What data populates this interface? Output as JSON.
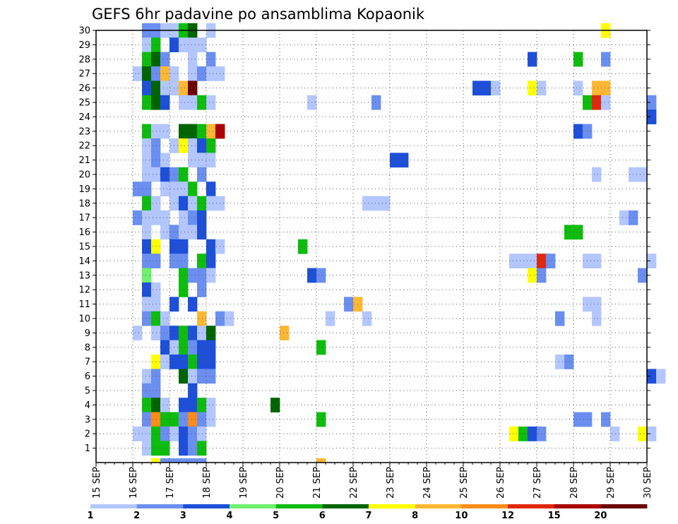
{
  "chart_data": {
    "type": "heatmap",
    "title": "GEFS 6hr padavine po ansamblima Kopaonik",
    "x_ticks": [
      "15 SEP",
      "16 SEP",
      "17 SEP",
      "18 SEP",
      "19 SEP",
      "20 SEP",
      "21 SEP",
      "22 SEP",
      "23 SEP",
      "24 SEP",
      "25 SEP",
      "26 SEP",
      "27 SEP",
      "28 SEP",
      "29 SEP",
      "30 SEP"
    ],
    "y_ticks": [
      "1",
      "2",
      "3",
      "4",
      "5",
      "6",
      "7",
      "8",
      "9",
      "10",
      "11",
      "12",
      "13",
      "14",
      "15",
      "16",
      "17",
      "18",
      "19",
      "20",
      "21",
      "22",
      "23",
      "24",
      "25",
      "26",
      "27",
      "28",
      "29",
      "30"
    ],
    "legend_labels": [
      "1",
      "2",
      "3",
      "4",
      "5",
      "6",
      "7",
      "8",
      "10",
      "12",
      "15",
      "20"
    ],
    "colors": [
      "#b3c6ff",
      "#6b8ff0",
      "#1e4fd8",
      "#6ff06f",
      "#0dbc0d",
      "#006400",
      "#ffff00",
      "#ffb733",
      "#ff8c19",
      "#e0280c",
      "#aa0000",
      "#6b0000"
    ],
    "x_grid_step_days": 0.25,
    "grid": "dotted",
    "legend_position": "bottom",
    "note_values": "level index per 6h step: 1=[1,2) 2=[2,3) 3=[3,4) 4=[4,5) 5=[5,6) 6=[6,7) 7=[7,8) 8=[8,10) 9=[10,12) 10=[12,15) 11=[15,20) 12=[20,+)",
    "cells": [
      [
        30,
        5,
        2
      ],
      [
        30,
        6,
        2
      ],
      [
        30,
        7,
        1
      ],
      [
        30,
        8,
        1
      ],
      [
        30,
        9,
        5
      ],
      [
        30,
        10,
        6
      ],
      [
        30,
        12,
        1
      ],
      [
        30,
        55,
        7
      ],
      [
        29,
        5,
        1
      ],
      [
        29,
        6,
        5
      ],
      [
        29,
        8,
        3
      ],
      [
        29,
        9,
        1
      ],
      [
        29,
        10,
        1
      ],
      [
        29,
        11,
        1
      ],
      [
        28,
        5,
        5
      ],
      [
        28,
        6,
        6
      ],
      [
        28,
        7,
        2
      ],
      [
        28,
        10,
        1
      ],
      [
        28,
        12,
        2
      ],
      [
        28,
        47,
        3
      ],
      [
        28,
        52,
        5
      ],
      [
        28,
        55,
        2
      ],
      [
        27,
        4,
        1
      ],
      [
        27,
        5,
        6
      ],
      [
        27,
        6,
        2
      ],
      [
        27,
        7,
        8
      ],
      [
        27,
        8,
        1
      ],
      [
        27,
        10,
        1
      ],
      [
        27,
        11,
        2
      ],
      [
        27,
        12,
        1
      ],
      [
        27,
        13,
        1
      ],
      [
        26,
        5,
        3
      ],
      [
        26,
        6,
        6
      ],
      [
        26,
        7,
        1
      ],
      [
        26,
        8,
        1
      ],
      [
        26,
        9,
        8
      ],
      [
        26,
        10,
        12
      ],
      [
        26,
        41,
        3
      ],
      [
        26,
        42,
        3
      ],
      [
        26,
        43,
        1
      ],
      [
        26,
        47,
        7
      ],
      [
        26,
        48,
        1
      ],
      [
        26,
        52,
        1
      ],
      [
        26,
        54,
        8
      ],
      [
        26,
        55,
        8
      ],
      [
        25,
        5,
        5
      ],
      [
        25,
        6,
        6
      ],
      [
        25,
        7,
        3
      ],
      [
        25,
        9,
        1
      ],
      [
        25,
        10,
        1
      ],
      [
        25,
        11,
        5
      ],
      [
        25,
        12,
        1
      ],
      [
        25,
        23,
        1
      ],
      [
        25,
        30,
        2
      ],
      [
        25,
        53,
        5
      ],
      [
        25,
        54,
        10
      ],
      [
        25,
        55,
        1
      ],
      [
        25,
        60,
        2
      ],
      [
        24,
        60,
        3
      ],
      [
        23,
        5,
        5
      ],
      [
        23,
        6,
        1
      ],
      [
        23,
        7,
        1
      ],
      [
        23,
        9,
        6
      ],
      [
        23,
        10,
        6
      ],
      [
        23,
        11,
        5
      ],
      [
        23,
        12,
        8
      ],
      [
        23,
        13,
        11
      ],
      [
        23,
        52,
        3
      ],
      [
        23,
        53,
        2
      ],
      [
        22,
        5,
        1
      ],
      [
        22,
        6,
        2
      ],
      [
        22,
        8,
        1
      ],
      [
        22,
        9,
        7
      ],
      [
        22,
        10,
        1
      ],
      [
        22,
        11,
        3
      ],
      [
        22,
        12,
        5
      ],
      [
        21,
        5,
        1
      ],
      [
        21,
        6,
        2
      ],
      [
        21,
        7,
        1
      ],
      [
        21,
        10,
        1
      ],
      [
        21,
        11,
        1
      ],
      [
        21,
        12,
        1
      ],
      [
        21,
        32,
        3
      ],
      [
        21,
        33,
        3
      ],
      [
        20,
        5,
        1
      ],
      [
        20,
        6,
        1
      ],
      [
        20,
        7,
        3
      ],
      [
        20,
        8,
        2
      ],
      [
        20,
        9,
        5
      ],
      [
        20,
        11,
        2
      ],
      [
        20,
        54,
        1
      ],
      [
        20,
        58,
        1
      ],
      [
        20,
        59,
        1
      ],
      [
        19,
        4,
        2
      ],
      [
        19,
        5,
        2
      ],
      [
        19,
        7,
        1
      ],
      [
        19,
        8,
        1
      ],
      [
        19,
        9,
        1
      ],
      [
        19,
        10,
        5
      ],
      [
        19,
        12,
        3
      ],
      [
        18,
        5,
        5
      ],
      [
        18,
        6,
        1
      ],
      [
        18,
        8,
        1
      ],
      [
        18,
        9,
        3
      ],
      [
        18,
        10,
        1
      ],
      [
        18,
        11,
        5
      ],
      [
        18,
        12,
        1
      ],
      [
        18,
        13,
        1
      ],
      [
        18,
        29,
        1
      ],
      [
        18,
        30,
        1
      ],
      [
        18,
        31,
        1
      ],
      [
        17,
        4,
        2
      ],
      [
        17,
        5,
        1
      ],
      [
        17,
        6,
        1
      ],
      [
        17,
        7,
        1
      ],
      [
        17,
        9,
        1
      ],
      [
        17,
        10,
        2
      ],
      [
        17,
        11,
        3
      ],
      [
        17,
        57,
        1
      ],
      [
        17,
        58,
        2
      ],
      [
        16,
        5,
        1
      ],
      [
        16,
        7,
        1
      ],
      [
        16,
        8,
        2
      ],
      [
        16,
        9,
        1
      ],
      [
        16,
        10,
        1
      ],
      [
        16,
        11,
        3
      ],
      [
        16,
        51,
        5
      ],
      [
        16,
        52,
        5
      ],
      [
        15,
        5,
        3
      ],
      [
        15,
        6,
        7
      ],
      [
        15,
        8,
        3
      ],
      [
        15,
        9,
        3
      ],
      [
        15,
        12,
        3
      ],
      [
        15,
        13,
        1
      ],
      [
        15,
        22,
        5
      ],
      [
        14,
        5,
        2
      ],
      [
        14,
        6,
        2
      ],
      [
        14,
        8,
        2
      ],
      [
        14,
        9,
        2
      ],
      [
        14,
        11,
        5
      ],
      [
        14,
        12,
        3
      ],
      [
        14,
        45,
        1
      ],
      [
        14,
        46,
        1
      ],
      [
        14,
        47,
        1
      ],
      [
        14,
        48,
        10
      ],
      [
        14,
        49,
        2
      ],
      [
        14,
        53,
        1
      ],
      [
        14,
        54,
        1
      ],
      [
        14,
        60,
        1
      ],
      [
        13,
        5,
        4
      ],
      [
        13,
        9,
        5
      ],
      [
        13,
        10,
        2
      ],
      [
        13,
        11,
        2
      ],
      [
        13,
        12,
        1
      ],
      [
        13,
        23,
        3
      ],
      [
        13,
        24,
        2
      ],
      [
        13,
        47,
        7
      ],
      [
        13,
        48,
        2
      ],
      [
        13,
        59,
        2
      ],
      [
        12,
        5,
        3
      ],
      [
        12,
        6,
        1
      ],
      [
        12,
        9,
        5
      ],
      [
        12,
        11,
        2
      ],
      [
        11,
        5,
        1
      ],
      [
        11,
        6,
        1
      ],
      [
        11,
        8,
        3
      ],
      [
        11,
        10,
        3
      ],
      [
        11,
        27,
        2
      ],
      [
        11,
        28,
        8
      ],
      [
        11,
        53,
        1
      ],
      [
        11,
        54,
        1
      ],
      [
        10,
        5,
        2
      ],
      [
        10,
        6,
        5
      ],
      [
        10,
        7,
        1
      ],
      [
        10,
        11,
        8
      ],
      [
        10,
        13,
        2
      ],
      [
        10,
        14,
        1
      ],
      [
        10,
        25,
        1
      ],
      [
        10,
        29,
        1
      ],
      [
        10,
        50,
        2
      ],
      [
        10,
        54,
        1
      ],
      [
        9,
        4,
        1
      ],
      [
        9,
        6,
        1
      ],
      [
        9,
        7,
        2
      ],
      [
        9,
        8,
        3
      ],
      [
        9,
        9,
        5
      ],
      [
        9,
        10,
        3
      ],
      [
        9,
        11,
        1
      ],
      [
        9,
        12,
        6
      ],
      [
        9,
        20,
        8
      ],
      [
        8,
        7,
        3
      ],
      [
        8,
        8,
        1
      ],
      [
        8,
        9,
        5
      ],
      [
        8,
        10,
        2
      ],
      [
        8,
        11,
        3
      ],
      [
        8,
        12,
        3
      ],
      [
        8,
        24,
        5
      ],
      [
        7,
        6,
        7
      ],
      [
        7,
        7,
        1
      ],
      [
        7,
        8,
        3
      ],
      [
        7,
        9,
        3
      ],
      [
        7,
        10,
        5
      ],
      [
        7,
        11,
        3
      ],
      [
        7,
        12,
        3
      ],
      [
        7,
        50,
        1
      ],
      [
        7,
        51,
        2
      ],
      [
        6,
        5,
        1
      ],
      [
        6,
        6,
        2
      ],
      [
        6,
        9,
        6
      ],
      [
        6,
        10,
        1
      ],
      [
        6,
        11,
        2
      ],
      [
        6,
        12,
        2
      ],
      [
        6,
        60,
        3
      ],
      [
        6,
        61,
        1
      ],
      [
        5,
        5,
        2
      ],
      [
        5,
        6,
        2
      ],
      [
        5,
        10,
        3
      ],
      [
        4,
        5,
        5
      ],
      [
        4,
        6,
        6
      ],
      [
        4,
        7,
        1
      ],
      [
        4,
        9,
        3
      ],
      [
        4,
        10,
        3
      ],
      [
        4,
        11,
        5
      ],
      [
        4,
        12,
        1
      ],
      [
        4,
        19,
        6
      ],
      [
        3,
        5,
        2
      ],
      [
        3,
        6,
        9
      ],
      [
        3,
        7,
        5
      ],
      [
        3,
        8,
        5
      ],
      [
        3,
        9,
        2
      ],
      [
        3,
        10,
        9
      ],
      [
        3,
        11,
        2
      ],
      [
        3,
        12,
        1
      ],
      [
        3,
        24,
        5
      ],
      [
        3,
        52,
        2
      ],
      [
        3,
        53,
        2
      ],
      [
        3,
        55,
        2
      ],
      [
        2,
        4,
        1
      ],
      [
        2,
        5,
        1
      ],
      [
        2,
        6,
        5
      ],
      [
        2,
        7,
        2
      ],
      [
        2,
        8,
        1
      ],
      [
        2,
        9,
        3
      ],
      [
        2,
        10,
        2
      ],
      [
        2,
        11,
        1
      ],
      [
        2,
        45,
        7
      ],
      [
        2,
        46,
        5
      ],
      [
        2,
        47,
        3
      ],
      [
        2,
        48,
        2
      ],
      [
        2,
        56,
        1
      ],
      [
        2,
        59,
        7
      ],
      [
        2,
        60,
        1
      ],
      [
        1,
        5,
        1
      ],
      [
        1,
        6,
        5
      ],
      [
        1,
        7,
        5
      ],
      [
        1,
        9,
        3
      ],
      [
        1,
        10,
        2
      ],
      [
        1,
        11,
        5
      ],
      [
        0,
        6,
        7
      ],
      [
        0,
        7,
        2
      ],
      [
        0,
        8,
        2
      ],
      [
        0,
        9,
        2
      ],
      [
        0,
        10,
        2
      ],
      [
        0,
        11,
        2
      ],
      [
        0,
        24,
        8
      ]
    ]
  }
}
